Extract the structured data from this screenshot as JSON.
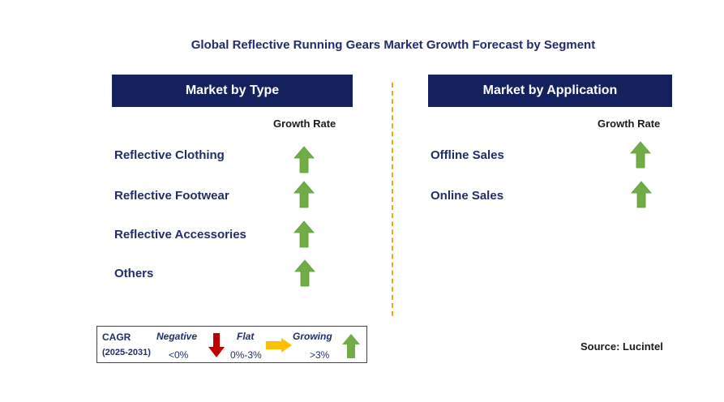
{
  "title": "Global Reflective Running Gears Market Growth Forecast by Segment",
  "type_panel": {
    "header": "Market by Type",
    "growth_rate_label": "Growth Rate",
    "items": [
      {
        "label": "Reflective Clothing",
        "trend": "growing"
      },
      {
        "label": "Reflective Footwear",
        "trend": "growing"
      },
      {
        "label": "Reflective Accessories",
        "trend": "growing"
      },
      {
        "label": "Others",
        "trend": "growing"
      }
    ]
  },
  "application_panel": {
    "header": "Market by Application",
    "growth_rate_label": "Growth Rate",
    "items": [
      {
        "label": "Offline Sales",
        "trend": "growing"
      },
      {
        "label": "Online Sales",
        "trend": "growing"
      }
    ]
  },
  "legend": {
    "cagr_label": "CAGR",
    "period": "(2025-2031)",
    "negative": {
      "label": "Negative",
      "range": "<0%",
      "icon": "down-arrow-icon",
      "color": "#c00000"
    },
    "flat": {
      "label": "Flat",
      "range": "0%-3%",
      "icon": "right-arrow-icon",
      "color": "#ffc000"
    },
    "growing": {
      "label": "Growing",
      "range": ">3%",
      "icon": "up-arrow-icon",
      "color": "#70ad47"
    }
  },
  "source": "Source: Lucintel"
}
